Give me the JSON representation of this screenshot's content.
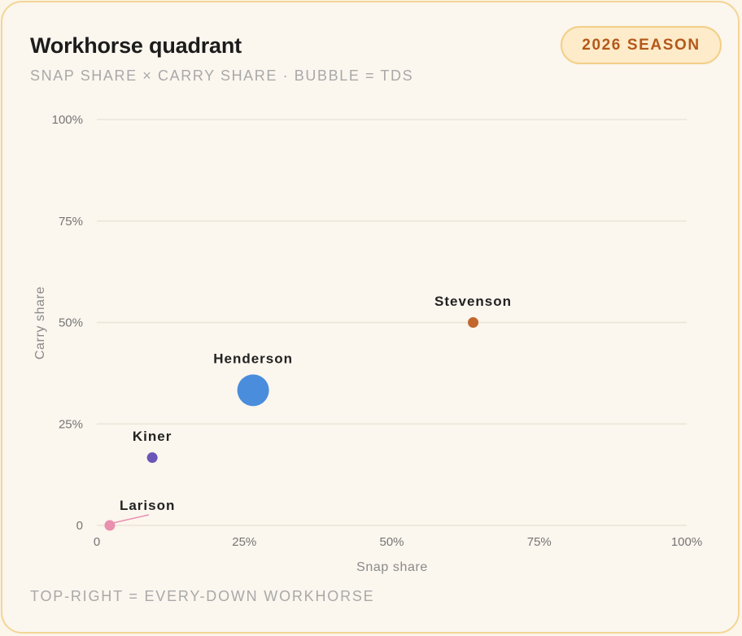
{
  "header": {
    "title": "Workhorse quadrant",
    "subtitle": "SNAP SHARE × CARRY SHARE · BUBBLE = TDS",
    "badge": "2026 SEASON"
  },
  "footer": {
    "note": "TOP-RIGHT = EVERY-DOWN WORKHORSE"
  },
  "chart_data": {
    "type": "scatter",
    "title": "Workhorse quadrant",
    "subtitle": "SNAP SHARE × CARRY SHARE · BUBBLE = TDS",
    "xlabel": "Snap share",
    "ylabel": "Carry share",
    "xlim": [
      0,
      100
    ],
    "ylim": [
      0,
      100
    ],
    "x_ticks": [
      "0",
      "25%",
      "50%",
      "75%",
      "100%"
    ],
    "y_ticks": [
      "0",
      "25%",
      "50%",
      "75%",
      "100%"
    ],
    "grid": "horizontal",
    "legend": "none",
    "points": [
      {
        "label": "Henderson",
        "x": 26.5,
        "y": 33.3,
        "tds": 4,
        "color": "#4a8ddc"
      },
      {
        "label": "Stevenson",
        "x": 63.8,
        "y": 50,
        "tds": 0,
        "color": "#c2672c"
      },
      {
        "label": "Kiner",
        "x": 9.4,
        "y": 16.7,
        "tds": 0,
        "color": "#6b55b7"
      },
      {
        "label": "Larison",
        "x": 2.2,
        "y": 0,
        "tds": 0,
        "color": "#e98fb0"
      }
    ]
  }
}
